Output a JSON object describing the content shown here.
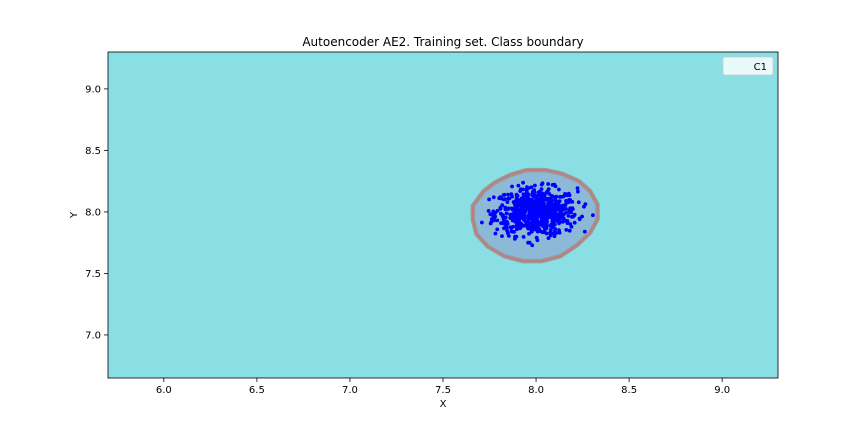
{
  "chart_data": {
    "type": "scatter",
    "title": "Autoencoder AE2. Training set. Class boundary",
    "xlabel": "X",
    "ylabel": "Y",
    "xlim": [
      5.7,
      9.3
    ],
    "ylim": [
      6.65,
      9.3
    ],
    "x_ticks": [
      6.0,
      6.5,
      7.0,
      7.5,
      8.0,
      8.5,
      9.0
    ],
    "x_tick_labels": [
      "6.0",
      "6.5",
      "7.0",
      "7.5",
      "8.0",
      "8.5",
      "9.0"
    ],
    "y_ticks": [
      7.0,
      7.5,
      8.0,
      8.5,
      9.0
    ],
    "y_tick_labels": [
      "7.0",
      "7.5",
      "8.0",
      "8.5",
      "9.0"
    ],
    "grid": false,
    "legend": {
      "placement": "top-right",
      "entries": [
        "C1"
      ]
    },
    "colors": {
      "background_region": "#8adfe5",
      "inside_region": "#8cb9d8",
      "boundary": "#c47a7a",
      "points": "#0000ff"
    },
    "boundary_polygon": [
      [
        7.66,
        8.05
      ],
      [
        7.72,
        8.17
      ],
      [
        7.78,
        8.24
      ],
      [
        7.86,
        8.3
      ],
      [
        7.95,
        8.34
      ],
      [
        8.05,
        8.34
      ],
      [
        8.14,
        8.31
      ],
      [
        8.23,
        8.25
      ],
      [
        8.29,
        8.17
      ],
      [
        8.33,
        8.06
      ],
      [
        8.33,
        7.94
      ],
      [
        8.29,
        7.83
      ],
      [
        8.22,
        7.73
      ],
      [
        8.13,
        7.64
      ],
      [
        8.03,
        7.6
      ],
      [
        7.93,
        7.6
      ],
      [
        7.83,
        7.64
      ],
      [
        7.74,
        7.72
      ],
      [
        7.68,
        7.82
      ],
      [
        7.66,
        7.94
      ]
    ],
    "scatter": {
      "name": "C1",
      "center": [
        8.0,
        8.0
      ],
      "spread": [
        0.11,
        0.095
      ],
      "count": 700
    }
  }
}
